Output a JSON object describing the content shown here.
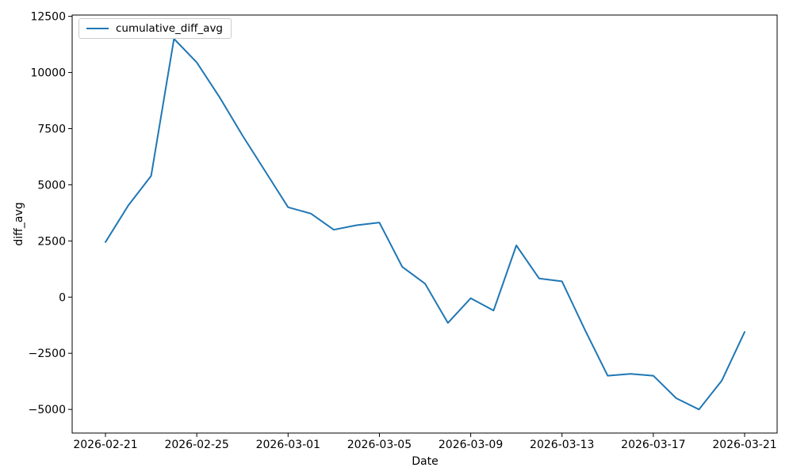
{
  "figure": {
    "xlabel": "Date",
    "ylabel": "diff_avg"
  },
  "chart_data": {
    "type": "line",
    "title": "",
    "xlabel": "Date",
    "ylabel": "diff_avg",
    "grid": false,
    "legend_position": "upper left",
    "line_color": "#1f77b4",
    "x": [
      "2026-02-21",
      "2026-02-22",
      "2026-02-23",
      "2026-02-24",
      "2026-02-25",
      "2026-02-26",
      "2026-02-27",
      "2026-02-28",
      "2026-03-01",
      "2026-03-02",
      "2026-03-03",
      "2026-03-04",
      "2026-03-05",
      "2026-03-06",
      "2026-03-07",
      "2026-03-08",
      "2026-03-09",
      "2026-03-10",
      "2026-03-11",
      "2026-03-12",
      "2026-03-13",
      "2026-03-14",
      "2026-03-15",
      "2026-03-16",
      "2026-03-17",
      "2026-03-18",
      "2026-03-19",
      "2026-03-20",
      "2026-03-21"
    ],
    "series": [
      {
        "name": "cumulative_diff_avg",
        "color": "#1f77b4",
        "values": [
          2450,
          4080,
          5400,
          11500,
          10450,
          8900,
          7200,
          5600,
          4000,
          3720,
          3000,
          3200,
          3320,
          1350,
          600,
          -1150,
          -50,
          -600,
          2300,
          830,
          700,
          -1450,
          -3500,
          -3420,
          -3500,
          -4500,
          -5000,
          -3720,
          -1550
        ]
      }
    ],
    "ylim": [
      -6050,
      12520
    ],
    "yticks": [
      12500,
      10000,
      7500,
      5000,
      2500,
      0,
      -2500,
      -5000
    ],
    "ytick_labels": [
      "12500",
      "10000",
      "7500",
      "5000",
      "2500",
      "0",
      "−2500",
      "−5000"
    ],
    "xticks_day_index": [
      0,
      4,
      8,
      12,
      16,
      20,
      24,
      28
    ],
    "xtick_labels": [
      "2026-02-21",
      "2026-02-25",
      "2026-03-01",
      "2026-03-05",
      "2026-03-09",
      "2026-03-13",
      "2026-03-17",
      "2026-03-21"
    ]
  }
}
